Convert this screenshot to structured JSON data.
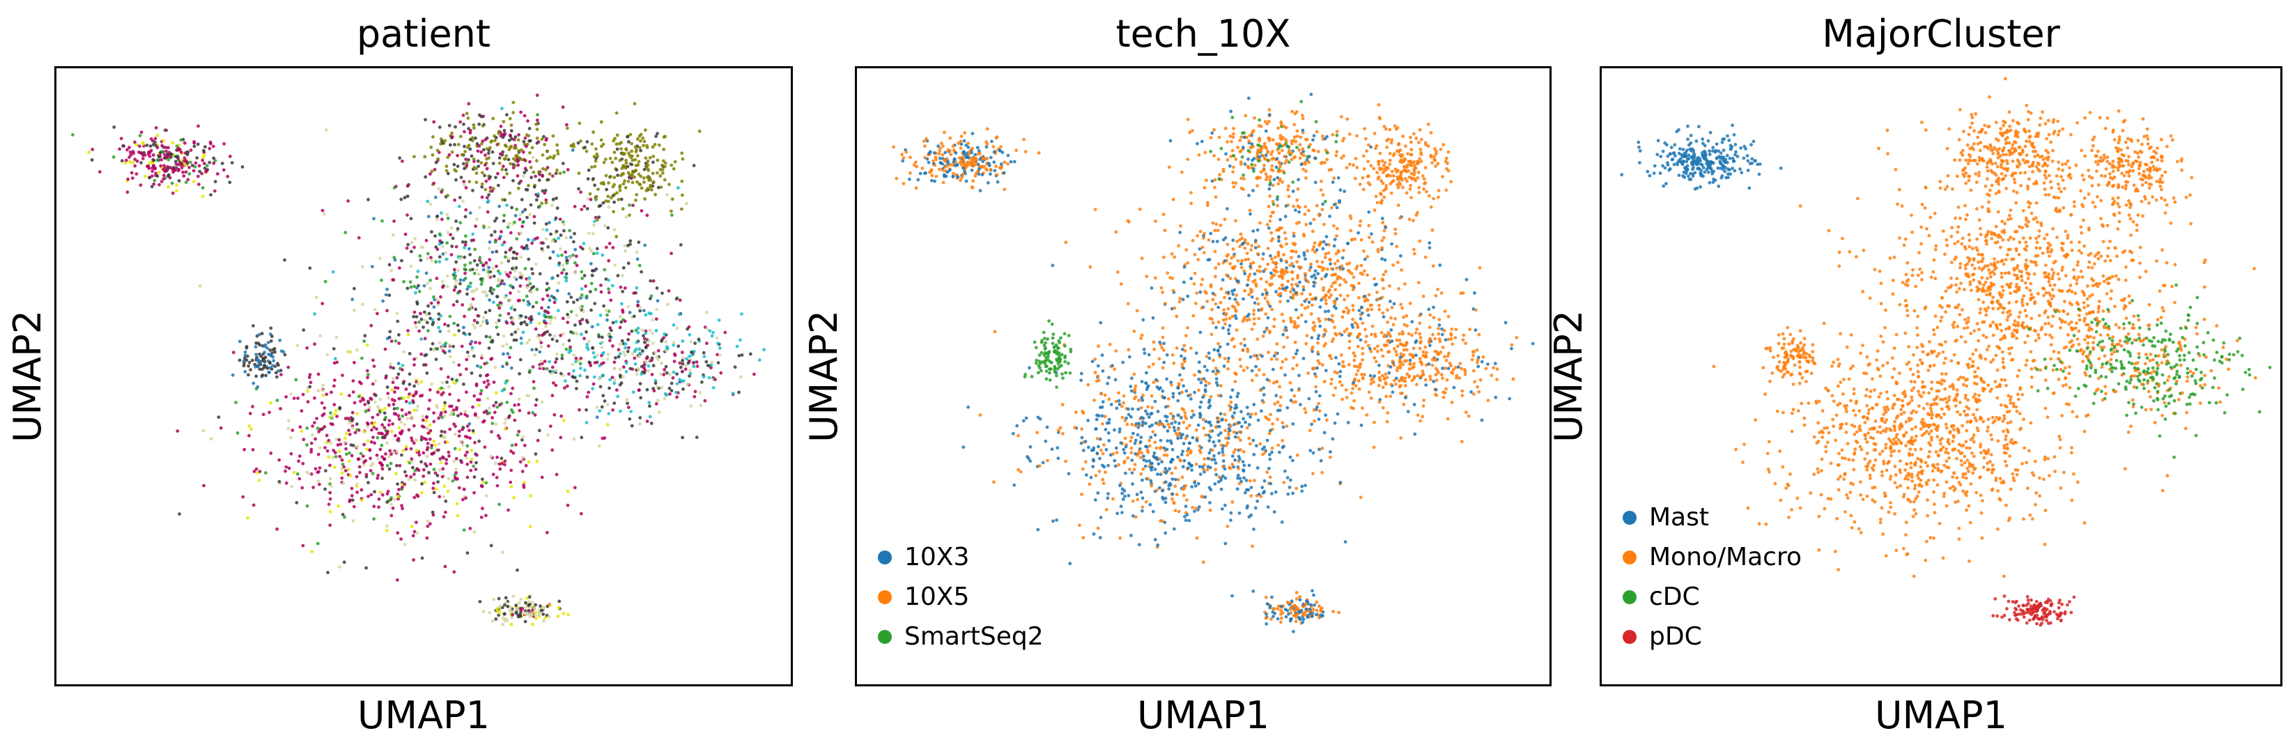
{
  "figure": {
    "panels": [
      {
        "id": "patient",
        "title": "patient",
        "xlabel": "UMAP1",
        "ylabel": "UMAP2",
        "legend": []
      },
      {
        "id": "tech",
        "title": "tech_10X",
        "xlabel": "UMAP1",
        "ylabel": "UMAP2",
        "legend": [
          {
            "label": "10X3",
            "color": "#1f77b4"
          },
          {
            "label": "10X5",
            "color": "#ff7f0e"
          },
          {
            "label": "SmartSeq2",
            "color": "#2ca02c"
          }
        ]
      },
      {
        "id": "major",
        "title": "MajorCluster",
        "xlabel": "UMAP1",
        "ylabel": "UMAP2",
        "legend": [
          {
            "label": "Mast",
            "color": "#1f77b4"
          },
          {
            "label": "Mono/Macro",
            "color": "#ff7f0e"
          },
          {
            "label": "cDC",
            "color": "#2ca02c"
          },
          {
            "label": "pDC",
            "color": "#d62728"
          }
        ]
      }
    ]
  },
  "chart_data": [
    {
      "type": "scatter",
      "title": "patient",
      "xlabel": "UMAP1",
      "ylabel": "UMAP2",
      "grid": false,
      "legend": "none",
      "point_coloring": "categorical by patient (many categories, no legend shown)",
      "dominant_colors": [
        "#b3005e",
        "#808000",
        "#1f77b4",
        "#2ca02c",
        "#d6d6a0",
        "#3a3a3a",
        "#17becf",
        "#e6e600"
      ],
      "clusters": [
        "Mast",
        "Mono/Macro",
        "cDC",
        "pDC"
      ]
    },
    {
      "type": "scatter",
      "title": "tech_10X",
      "xlabel": "UMAP1",
      "ylabel": "UMAP2",
      "grid": false,
      "legend": "bottom-left",
      "series": [
        {
          "name": "10X3",
          "color": "#1f77b4"
        },
        {
          "name": "10X5",
          "color": "#ff7f0e"
        },
        {
          "name": "SmartSeq2",
          "color": "#2ca02c"
        }
      ]
    },
    {
      "type": "scatter",
      "title": "MajorCluster",
      "xlabel": "UMAP1",
      "ylabel": "UMAP2",
      "grid": false,
      "legend": "bottom-left",
      "series": [
        {
          "name": "Mast",
          "color": "#1f77b4"
        },
        {
          "name": "Mono/Macro",
          "color": "#ff7f0e"
        },
        {
          "name": "cDC",
          "color": "#2ca02c"
        },
        {
          "name": "pDC",
          "color": "#d62728"
        }
      ]
    }
  ]
}
